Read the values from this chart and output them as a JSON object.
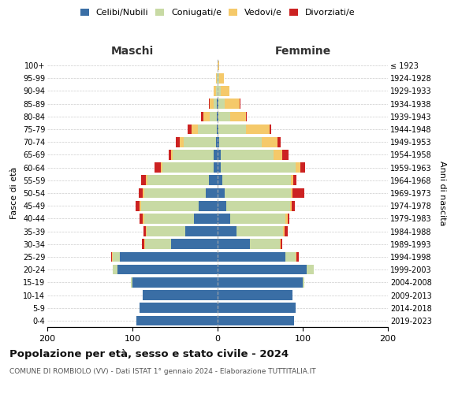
{
  "age_groups": [
    "0-4",
    "5-9",
    "10-14",
    "15-19",
    "20-24",
    "25-29",
    "30-34",
    "35-39",
    "40-44",
    "45-49",
    "50-54",
    "55-59",
    "60-64",
    "65-69",
    "70-74",
    "75-79",
    "80-84",
    "85-89",
    "90-94",
    "95-99",
    "100+"
  ],
  "birth_years": [
    "2019-2023",
    "2014-2018",
    "2009-2013",
    "2004-2008",
    "1999-2003",
    "1994-1998",
    "1989-1993",
    "1984-1988",
    "1979-1983",
    "1974-1978",
    "1969-1973",
    "1964-1968",
    "1959-1963",
    "1954-1958",
    "1949-1953",
    "1944-1948",
    "1939-1943",
    "1934-1938",
    "1929-1933",
    "1924-1928",
    "≤ 1923"
  ],
  "male": {
    "celibi": [
      95,
      92,
      88,
      100,
      118,
      115,
      55,
      38,
      28,
      22,
      14,
      10,
      5,
      5,
      2,
      1,
      1,
      1,
      0,
      0,
      0
    ],
    "coniugati": [
      0,
      0,
      0,
      2,
      5,
      8,
      30,
      45,
      58,
      68,
      72,
      72,
      60,
      48,
      38,
      22,
      8,
      4,
      2,
      1,
      0
    ],
    "vedovi": [
      0,
      0,
      0,
      0,
      0,
      1,
      1,
      1,
      2,
      2,
      2,
      2,
      2,
      2,
      4,
      8,
      8,
      4,
      3,
      1,
      0
    ],
    "divorziati": [
      0,
      0,
      0,
      0,
      0,
      1,
      3,
      3,
      4,
      4,
      5,
      6,
      7,
      2,
      5,
      4,
      2,
      1,
      0,
      0,
      0
    ]
  },
  "female": {
    "nubili": [
      90,
      92,
      88,
      100,
      105,
      80,
      38,
      22,
      15,
      10,
      8,
      6,
      4,
      4,
      2,
      1,
      1,
      1,
      0,
      0,
      0
    ],
    "coniugate": [
      0,
      0,
      0,
      2,
      8,
      12,
      35,
      55,
      65,
      75,
      78,
      80,
      88,
      62,
      50,
      32,
      14,
      7,
      4,
      2,
      0
    ],
    "vedove": [
      0,
      0,
      0,
      0,
      0,
      1,
      1,
      2,
      2,
      2,
      2,
      3,
      5,
      10,
      18,
      28,
      18,
      18,
      10,
      5,
      2
    ],
    "divorziate": [
      0,
      0,
      0,
      0,
      0,
      2,
      2,
      3,
      2,
      4,
      14,
      4,
      6,
      7,
      4,
      2,
      1,
      1,
      0,
      0,
      0
    ]
  },
  "colors": {
    "celibi_nubili": "#3a6ea5",
    "coniugati": "#c8daa4",
    "vedovi": "#f5c96a",
    "divorziati": "#cc2222"
  },
  "title": "Popolazione per età, sesso e stato civile - 2024",
  "subtitle": "COMUNE DI ROMBIOLO (VV) - Dati ISTAT 1° gennaio 2024 - Elaborazione TUTTITALIA.IT",
  "xlabel_left": "Maschi",
  "xlabel_right": "Femmine",
  "ylabel_left": "Fasce di età",
  "ylabel_right": "Anni di nascita",
  "xlim": 200,
  "legend_labels": [
    "Celibi/Nubili",
    "Coniugati/e",
    "Vedovi/e",
    "Divorziati/e"
  ],
  "background_color": "#ffffff"
}
